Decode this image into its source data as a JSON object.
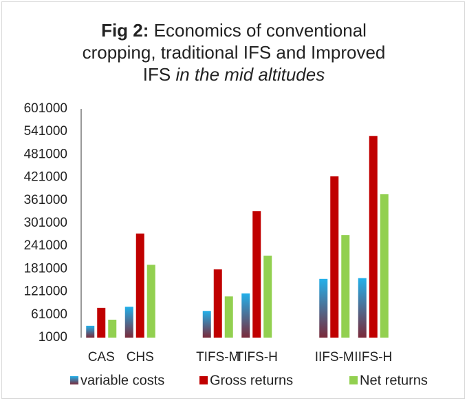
{
  "chart_data": {
    "type": "bar",
    "title": {
      "label": "Fig 2:",
      "text": "Economics of conventional cropping, traditional IFS and Improved IFS",
      "emphasis": "in the mid altitudes"
    },
    "categories": [
      "CAS",
      "CHS",
      null,
      "TIFS-M",
      "TIFS-H",
      null,
      "IIFS-M",
      "IIFS-H"
    ],
    "series": [
      {
        "name": "variable costs",
        "color": "#22b0ea",
        "values": [
          32000,
          82000,
          null,
          71000,
          117000,
          null,
          155000,
          157000
        ]
      },
      {
        "name": "Gross returns",
        "color": "#c00000",
        "values": [
          79000,
          274000,
          null,
          180000,
          333000,
          null,
          424000,
          530000
        ]
      },
      {
        "name": "Net returns",
        "color": "#92d050",
        "values": [
          48000,
          192000,
          null,
          109000,
          216000,
          null,
          270000,
          377000
        ]
      }
    ],
    "ylim": [
      1000,
      601000
    ],
    "yticks": [
      1000,
      61000,
      121000,
      181000,
      241000,
      301000,
      361000,
      421000,
      481000,
      541000,
      601000
    ],
    "grid": false,
    "legend": "bottom"
  }
}
